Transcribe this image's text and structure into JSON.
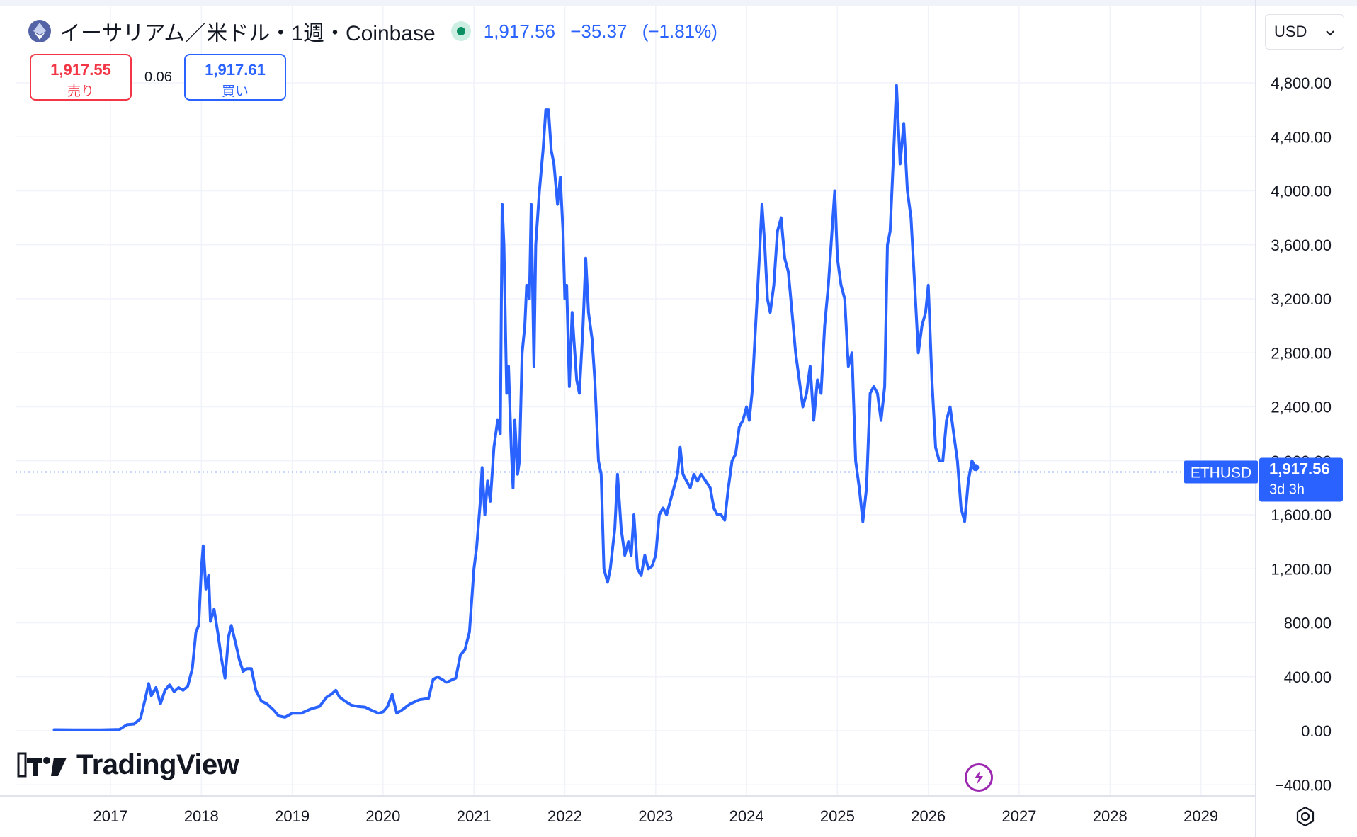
{
  "header": {
    "title": "イーサリアム／米ドル・1週・Coinbase",
    "price": "1,917.56",
    "change": "−35.37",
    "change_pct": "(−1.81%)"
  },
  "trade": {
    "sell_price": "1,917.55",
    "sell_label": "売り",
    "spread": "0.06",
    "buy_price": "1,917.61",
    "buy_label": "買い"
  },
  "currency_select": {
    "value": "USD"
  },
  "logo_text": "TradingView",
  "colors": {
    "line": "#2962ff",
    "sell": "#f23645",
    "buy": "#2962ff",
    "grid": "#f0f3fa",
    "axis_text": "#131722"
  },
  "icons": [
    "ethereum-icon",
    "live-status-dot",
    "chevron-down-icon",
    "lightning-icon",
    "settings-icon"
  ],
  "chart_data": {
    "type": "line",
    "symbol": "ETHUSD",
    "last_value": 1917.56,
    "last_label": "1,917.56",
    "countdown": "3d 3h",
    "ylim": [
      -400,
      5000
    ],
    "xlim": [
      2016.2,
      2029.7
    ],
    "y_ticks": [
      {
        "v": -400,
        "label": "−400.00"
      },
      {
        "v": 0,
        "label": "0.00"
      },
      {
        "v": 400,
        "label": "400.00"
      },
      {
        "v": 800,
        "label": "800.00"
      },
      {
        "v": 1200,
        "label": "1,200.00"
      },
      {
        "v": 1600,
        "label": "1,600.00"
      },
      {
        "v": 2000,
        "label": "2,000.00"
      },
      {
        "v": 2400,
        "label": "2,400.00"
      },
      {
        "v": 2800,
        "label": "2,800.00"
      },
      {
        "v": 3200,
        "label": "3,200.00"
      },
      {
        "v": 3600,
        "label": "3,600.00"
      },
      {
        "v": 4000,
        "label": "4,000.00"
      },
      {
        "v": 4400,
        "label": "4,400.00"
      },
      {
        "v": 4800,
        "label": "4,800.00"
      }
    ],
    "x_ticks": [
      {
        "v": 2017,
        "label": "2017"
      },
      {
        "v": 2018,
        "label": "2018"
      },
      {
        "v": 2019,
        "label": "2019"
      },
      {
        "v": 2020,
        "label": "2020"
      },
      {
        "v": 2021,
        "label": "2021"
      },
      {
        "v": 2022,
        "label": "2022"
      },
      {
        "v": 2023,
        "label": "2023"
      },
      {
        "v": 2024,
        "label": "2024"
      },
      {
        "v": 2025,
        "label": "2025"
      },
      {
        "v": 2026,
        "label": "2026"
      },
      {
        "v": 2027,
        "label": "2027"
      },
      {
        "v": 2028,
        "label": "2028"
      },
      {
        "v": 2029,
        "label": "2029"
      }
    ],
    "points": [
      [
        2016.38,
        8
      ],
      [
        2016.6,
        7
      ],
      [
        2016.9,
        7
      ],
      [
        2017.1,
        10
      ],
      [
        2017.18,
        45
      ],
      [
        2017.26,
        50
      ],
      [
        2017.33,
        90
      ],
      [
        2017.38,
        230
      ],
      [
        2017.42,
        350
      ],
      [
        2017.45,
        260
      ],
      [
        2017.5,
        320
      ],
      [
        2017.55,
        200
      ],
      [
        2017.6,
        300
      ],
      [
        2017.65,
        340
      ],
      [
        2017.7,
        290
      ],
      [
        2017.75,
        320
      ],
      [
        2017.8,
        300
      ],
      [
        2017.85,
        330
      ],
      [
        2017.9,
        460
      ],
      [
        2017.94,
        730
      ],
      [
        2017.97,
        780
      ],
      [
        2018.0,
        1200
      ],
      [
        2018.02,
        1370
      ],
      [
        2018.05,
        1050
      ],
      [
        2018.08,
        1150
      ],
      [
        2018.1,
        810
      ],
      [
        2018.14,
        900
      ],
      [
        2018.18,
        730
      ],
      [
        2018.22,
        540
      ],
      [
        2018.26,
        390
      ],
      [
        2018.3,
        700
      ],
      [
        2018.33,
        780
      ],
      [
        2018.38,
        640
      ],
      [
        2018.42,
        520
      ],
      [
        2018.46,
        440
      ],
      [
        2018.5,
        460
      ],
      [
        2018.55,
        460
      ],
      [
        2018.6,
        300
      ],
      [
        2018.66,
        220
      ],
      [
        2018.72,
        200
      ],
      [
        2018.8,
        150
      ],
      [
        2018.85,
        110
      ],
      [
        2018.92,
        100
      ],
      [
        2019.0,
        130
      ],
      [
        2019.1,
        130
      ],
      [
        2019.2,
        160
      ],
      [
        2019.3,
        180
      ],
      [
        2019.38,
        250
      ],
      [
        2019.43,
        270
      ],
      [
        2019.48,
        300
      ],
      [
        2019.52,
        250
      ],
      [
        2019.58,
        220
      ],
      [
        2019.65,
        190
      ],
      [
        2019.72,
        180
      ],
      [
        2019.8,
        175
      ],
      [
        2019.88,
        150
      ],
      [
        2019.95,
        130
      ],
      [
        2020.0,
        140
      ],
      [
        2020.05,
        180
      ],
      [
        2020.1,
        270
      ],
      [
        2020.15,
        130
      ],
      [
        2020.2,
        150
      ],
      [
        2020.3,
        200
      ],
      [
        2020.4,
        230
      ],
      [
        2020.5,
        240
      ],
      [
        2020.55,
        380
      ],
      [
        2020.6,
        400
      ],
      [
        2020.7,
        360
      ],
      [
        2020.8,
        390
      ],
      [
        2020.85,
        560
      ],
      [
        2020.9,
        600
      ],
      [
        2020.95,
        730
      ],
      [
        2021.0,
        1200
      ],
      [
        2021.03,
        1360
      ],
      [
        2021.07,
        1700
      ],
      [
        2021.09,
        1950
      ],
      [
        2021.12,
        1600
      ],
      [
        2021.15,
        1850
      ],
      [
        2021.18,
        1700
      ],
      [
        2021.22,
        2100
      ],
      [
        2021.26,
        2300
      ],
      [
        2021.29,
        2200
      ],
      [
        2021.31,
        3900
      ],
      [
        2021.33,
        3600
      ],
      [
        2021.36,
        2500
      ],
      [
        2021.38,
        2700
      ],
      [
        2021.41,
        2100
      ],
      [
        2021.43,
        1800
      ],
      [
        2021.45,
        2300
      ],
      [
        2021.48,
        1900
      ],
      [
        2021.5,
        2000
      ],
      [
        2021.53,
        2800
      ],
      [
        2021.56,
        3000
      ],
      [
        2021.58,
        3300
      ],
      [
        2021.61,
        3200
      ],
      [
        2021.63,
        3900
      ],
      [
        2021.66,
        2700
      ],
      [
        2021.68,
        3600
      ],
      [
        2021.72,
        4000
      ],
      [
        2021.76,
        4300
      ],
      [
        2021.79,
        4600
      ],
      [
        2021.82,
        4600
      ],
      [
        2021.85,
        4300
      ],
      [
        2021.88,
        4200
      ],
      [
        2021.92,
        3900
      ],
      [
        2021.95,
        4100
      ],
      [
        2021.98,
        3700
      ],
      [
        2022.0,
        3200
      ],
      [
        2022.02,
        3300
      ],
      [
        2022.05,
        2550
      ],
      [
        2022.08,
        3100
      ],
      [
        2022.1,
        2900
      ],
      [
        2022.13,
        2600
      ],
      [
        2022.16,
        2500
      ],
      [
        2022.2,
        3000
      ],
      [
        2022.23,
        3500
      ],
      [
        2022.26,
        3100
      ],
      [
        2022.3,
        2900
      ],
      [
        2022.33,
        2600
      ],
      [
        2022.37,
        2000
      ],
      [
        2022.4,
        1900
      ],
      [
        2022.43,
        1200
      ],
      [
        2022.47,
        1100
      ],
      [
        2022.5,
        1200
      ],
      [
        2022.55,
        1500
      ],
      [
        2022.58,
        1900
      ],
      [
        2022.62,
        1500
      ],
      [
        2022.66,
        1300
      ],
      [
        2022.7,
        1400
      ],
      [
        2022.73,
        1300
      ],
      [
        2022.76,
        1600
      ],
      [
        2022.8,
        1200
      ],
      [
        2022.84,
        1150
      ],
      [
        2022.88,
        1300
      ],
      [
        2022.92,
        1200
      ],
      [
        2022.96,
        1220
      ],
      [
        2023.0,
        1300
      ],
      [
        2023.04,
        1600
      ],
      [
        2023.08,
        1650
      ],
      [
        2023.12,
        1600
      ],
      [
        2023.16,
        1700
      ],
      [
        2023.2,
        1800
      ],
      [
        2023.24,
        1900
      ],
      [
        2023.27,
        2100
      ],
      [
        2023.3,
        1900
      ],
      [
        2023.34,
        1850
      ],
      [
        2023.38,
        1800
      ],
      [
        2023.42,
        1900
      ],
      [
        2023.46,
        1850
      ],
      [
        2023.5,
        1900
      ],
      [
        2023.55,
        1850
      ],
      [
        2023.6,
        1800
      ],
      [
        2023.64,
        1650
      ],
      [
        2023.68,
        1600
      ],
      [
        2023.72,
        1600
      ],
      [
        2023.76,
        1560
      ],
      [
        2023.8,
        1800
      ],
      [
        2023.84,
        2000
      ],
      [
        2023.88,
        2050
      ],
      [
        2023.92,
        2250
      ],
      [
        2023.96,
        2300
      ],
      [
        2024.0,
        2400
      ],
      [
        2024.03,
        2300
      ],
      [
        2024.06,
        2500
      ],
      [
        2024.1,
        3000
      ],
      [
        2024.14,
        3500
      ],
      [
        2024.17,
        3900
      ],
      [
        2024.2,
        3600
      ],
      [
        2024.23,
        3200
      ],
      [
        2024.26,
        3100
      ],
      [
        2024.3,
        3300
      ],
      [
        2024.34,
        3700
      ],
      [
        2024.38,
        3800
      ],
      [
        2024.42,
        3500
      ],
      [
        2024.46,
        3400
      ],
      [
        2024.5,
        3100
      ],
      [
        2024.54,
        2800
      ],
      [
        2024.58,
        2600
      ],
      [
        2024.62,
        2400
      ],
      [
        2024.66,
        2500
      ],
      [
        2024.7,
        2700
      ],
      [
        2024.74,
        2300
      ],
      [
        2024.78,
        2600
      ],
      [
        2024.82,
        2500
      ],
      [
        2024.86,
        3000
      ],
      [
        2024.9,
        3300
      ],
      [
        2024.94,
        3700
      ],
      [
        2024.97,
        4000
      ],
      [
        2025.0,
        3500
      ],
      [
        2025.04,
        3300
      ],
      [
        2025.08,
        3200
      ],
      [
        2025.12,
        2700
      ],
      [
        2025.16,
        2800
      ],
      [
        2025.2,
        2000
      ],
      [
        2025.24,
        1800
      ],
      [
        2025.28,
        1550
      ],
      [
        2025.32,
        1800
      ],
      [
        2025.36,
        2500
      ],
      [
        2025.4,
        2550
      ],
      [
        2025.44,
        2500
      ],
      [
        2025.48,
        2300
      ],
      [
        2025.52,
        2550
      ],
      [
        2025.55,
        3600
      ],
      [
        2025.58,
        3700
      ],
      [
        2025.62,
        4300
      ],
      [
        2025.65,
        4780
      ],
      [
        2025.69,
        4200
      ],
      [
        2025.73,
        4500
      ],
      [
        2025.77,
        4000
      ],
      [
        2025.81,
        3800
      ],
      [
        2025.85,
        3300
      ],
      [
        2025.89,
        2800
      ],
      [
        2025.93,
        3000
      ],
      [
        2025.97,
        3100
      ],
      [
        2026.0,
        3300
      ],
      [
        2026.04,
        2600
      ],
      [
        2026.08,
        2100
      ],
      [
        2026.12,
        2000
      ],
      [
        2026.16,
        2000
      ],
      [
        2026.2,
        2300
      ],
      [
        2026.24,
        2400
      ],
      [
        2026.28,
        2200
      ],
      [
        2026.32,
        2000
      ],
      [
        2026.36,
        1650
      ],
      [
        2026.4,
        1550
      ],
      [
        2026.44,
        1850
      ],
      [
        2026.48,
        2000
      ],
      [
        2026.52,
        1950
      ]
    ]
  }
}
